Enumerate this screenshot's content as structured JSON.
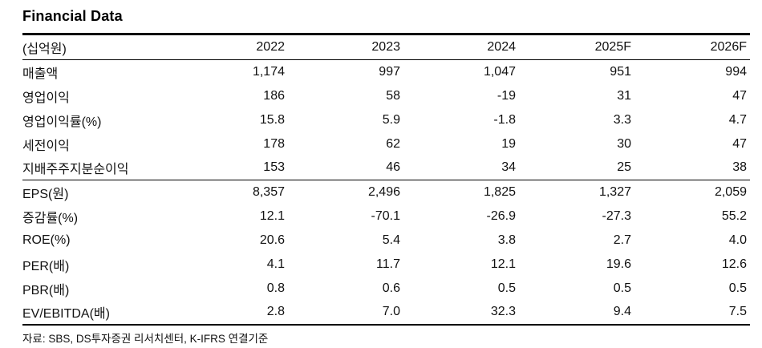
{
  "title": "Financial Data",
  "table": {
    "unit_label": "(십억원)",
    "columns": [
      "2022",
      "2023",
      "2024",
      "2025F",
      "2026F"
    ],
    "sections": [
      {
        "rows": [
          {
            "label": "매출액",
            "values": [
              "1,174",
              "997",
              "1,047",
              "951",
              "994"
            ]
          },
          {
            "label": "영업이익",
            "values": [
              "186",
              "58",
              "-19",
              "31",
              "47"
            ]
          },
          {
            "label": "영업이익률(%)",
            "values": [
              "15.8",
              "5.9",
              "-1.8",
              "3.3",
              "4.7"
            ]
          },
          {
            "label": "세전이익",
            "values": [
              "178",
              "62",
              "19",
              "30",
              "47"
            ]
          },
          {
            "label": "지배주주지분순이익",
            "values": [
              "153",
              "46",
              "34",
              "25",
              "38"
            ]
          }
        ]
      },
      {
        "rows": [
          {
            "label": "EPS(원)",
            "values": [
              "8,357",
              "2,496",
              "1,825",
              "1,327",
              "2,059"
            ]
          },
          {
            "label": "증감률(%)",
            "values": [
              "12.1",
              "-70.1",
              "-26.9",
              "-27.3",
              "55.2"
            ]
          },
          {
            "label": "ROE(%)",
            "values": [
              "20.6",
              "5.4",
              "3.8",
              "2.7",
              "4.0"
            ]
          },
          {
            "label": "PER(배)",
            "values": [
              "4.1",
              "11.7",
              "12.1",
              "19.6",
              "12.6"
            ]
          },
          {
            "label": "PBR(배)",
            "values": [
              "0.8",
              "0.6",
              "0.5",
              "0.5",
              "0.5"
            ]
          },
          {
            "label": "EV/EBITDA(배)",
            "values": [
              "2.8",
              "7.0",
              "32.3",
              "9.4",
              "7.5"
            ]
          }
        ]
      }
    ]
  },
  "footer": "자료: SBS, DS투자증권 리서치센터, K-IFRS 연결기준"
}
